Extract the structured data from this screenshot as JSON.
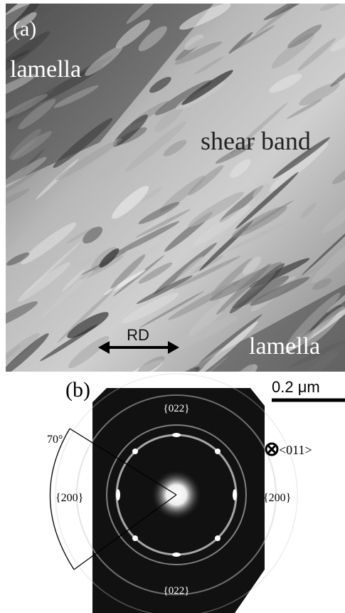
{
  "panel_a": {
    "label": "(a)",
    "lamella_top": "lamella",
    "shear_band": "shear band",
    "lamella_bottom": "lamella",
    "direction": "RD"
  },
  "panel_b": {
    "label": "(b)",
    "scale_bar": "0.2 μm",
    "ring_top": "{022}",
    "ring_bottom": "{022}",
    "angle": "70°",
    "ring_left": "{200}",
    "ring_right": "{200}",
    "zone_axis": "<011>"
  }
}
